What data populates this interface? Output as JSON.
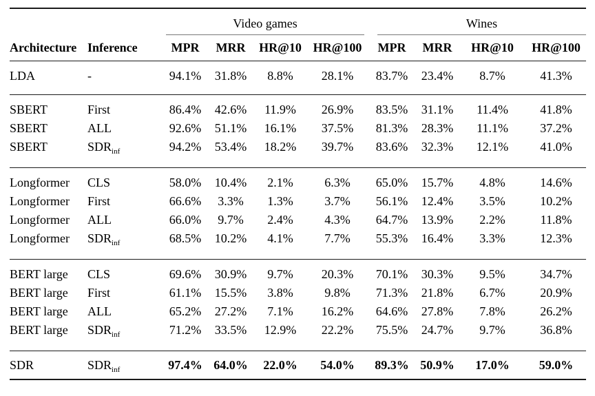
{
  "page": {
    "background_color": "#ffffff",
    "text_color": "#000000",
    "rule_color": "#1a1a1a",
    "cmidrule_color": "#777777"
  },
  "table": {
    "column_groups": [
      {
        "label": "Video games",
        "metrics": [
          "MPR",
          "MRR",
          "HR@10",
          "HR@100"
        ]
      },
      {
        "label": "Wines",
        "metrics": [
          "MPR",
          "MRR",
          "HR@10",
          "HR@100"
        ]
      }
    ],
    "header": {
      "architecture": "Architecture",
      "inference": "Inference"
    },
    "groups": [
      {
        "rows": [
          {
            "architecture": "LDA",
            "inference": {
              "base": "-",
              "sub": ""
            },
            "bold": false,
            "values": [
              "94.1%",
              "31.8%",
              "8.8%",
              "28.1%",
              "83.7%",
              "23.4%",
              "8.7%",
              "41.3%"
            ]
          }
        ]
      },
      {
        "rows": [
          {
            "architecture": "SBERT",
            "inference": {
              "base": "First",
              "sub": ""
            },
            "bold": false,
            "values": [
              "86.4%",
              "42.6%",
              "11.9%",
              "26.9%",
              "83.5%",
              "31.1%",
              "11.4%",
              "41.8%"
            ]
          },
          {
            "architecture": "SBERT",
            "inference": {
              "base": "ALL",
              "sub": ""
            },
            "bold": false,
            "values": [
              "92.6%",
              "51.1%",
              "16.1%",
              "37.5%",
              "81.3%",
              "28.3%",
              "11.1%",
              "37.2%"
            ]
          },
          {
            "architecture": "SBERT",
            "inference": {
              "base": "SDR",
              "sub": "inf"
            },
            "bold": false,
            "values": [
              "94.2%",
              "53.4%",
              "18.2%",
              "39.7%",
              "83.6%",
              "32.3%",
              "12.1%",
              "41.0%"
            ]
          }
        ]
      },
      {
        "rows": [
          {
            "architecture": "Longformer",
            "inference": {
              "base": "CLS",
              "sub": ""
            },
            "bold": false,
            "values": [
              "58.0%",
              "10.4%",
              "2.1%",
              "6.3%",
              "65.0%",
              "15.7%",
              "4.8%",
              "14.6%"
            ]
          },
          {
            "architecture": "Longformer",
            "inference": {
              "base": "First",
              "sub": ""
            },
            "bold": false,
            "values": [
              "66.6%",
              "3.3%",
              "1.3%",
              "3.7%",
              "56.1%",
              "12.4%",
              "3.5%",
              "10.2%"
            ]
          },
          {
            "architecture": "Longformer",
            "inference": {
              "base": "ALL",
              "sub": ""
            },
            "bold": false,
            "values": [
              "66.0%",
              "9.7%",
              "2.4%",
              "4.3%",
              "64.7%",
              "13.9%",
              "2.2%",
              "11.8%"
            ]
          },
          {
            "architecture": "Longformer",
            "inference": {
              "base": "SDR",
              "sub": "inf"
            },
            "bold": false,
            "values": [
              "68.5%",
              "10.2%",
              "4.1%",
              "7.7%",
              "55.3%",
              "16.4%",
              "3.3%",
              "12.3%"
            ]
          }
        ]
      },
      {
        "rows": [
          {
            "architecture": "BERT large",
            "inference": {
              "base": "CLS",
              "sub": ""
            },
            "bold": false,
            "values": [
              "69.6%",
              "30.9%",
              "9.7%",
              "20.3%",
              "70.1%",
              "30.3%",
              "9.5%",
              "34.7%"
            ]
          },
          {
            "architecture": "BERT large",
            "inference": {
              "base": "First",
              "sub": ""
            },
            "bold": false,
            "values": [
              "61.1%",
              "15.5%",
              "3.8%",
              "9.8%",
              "71.3%",
              "21.8%",
              "6.7%",
              "20.9%"
            ]
          },
          {
            "architecture": "BERT large",
            "inference": {
              "base": "ALL",
              "sub": ""
            },
            "bold": false,
            "values": [
              "65.2%",
              "27.2%",
              "7.1%",
              "16.2%",
              "64.6%",
              "27.8%",
              "7.8%",
              "26.2%"
            ]
          },
          {
            "architecture": "BERT large",
            "inference": {
              "base": "SDR",
              "sub": "inf"
            },
            "bold": false,
            "values": [
              "71.2%",
              "33.5%",
              "12.9%",
              "22.2%",
              "75.5%",
              "24.7%",
              "9.7%",
              "36.8%"
            ]
          }
        ]
      },
      {
        "rows": [
          {
            "architecture": "SDR",
            "inference": {
              "base": "SDR",
              "sub": "inf"
            },
            "bold": true,
            "values": [
              "97.4%",
              "64.0%",
              "22.0%",
              "54.0%",
              "89.3%",
              "50.9%",
              "17.0%",
              "59.0%"
            ]
          }
        ]
      }
    ]
  }
}
